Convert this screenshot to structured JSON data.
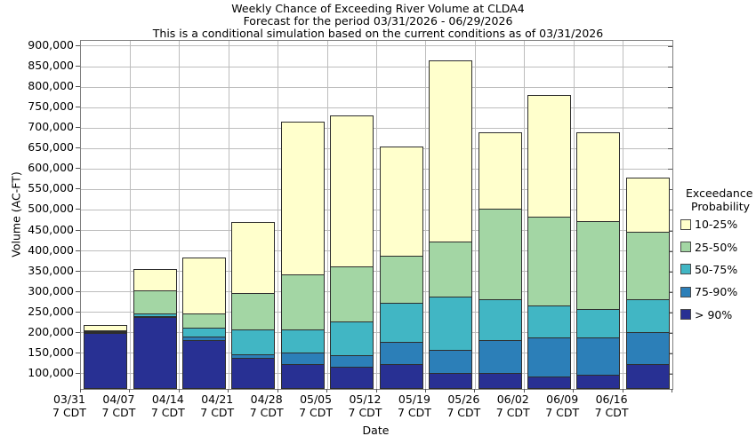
{
  "chart_data": {
    "type": "bar",
    "stacked": true,
    "title": "Weekly Chance of Exceeding River Volume at CLDA4",
    "subtitle": "Forecast for the period 03/31/2026 - 06/29/2026",
    "note": "This is a conditional simulation based on the current conditions as of 03/31/2026",
    "xlabel": "Date",
    "ylabel": "Volume (AC-FT)",
    "x_tick_sub": "7 CDT",
    "categories": [
      "03/31",
      "04/07",
      "04/14",
      "04/21",
      "04/28",
      "05/05",
      "05/12",
      "05/19",
      "05/26",
      "06/02",
      "06/09",
      "06/16"
    ],
    "series": [
      {
        "name": "10-25%",
        "color": "#FFFFCC",
        "cumulative": [
          220000,
          355000,
          385000,
          470000,
          715000,
          730000,
          655000,
          865000,
          690000,
          780000,
          690000,
          580000
        ]
      },
      {
        "name": "25-50%",
        "color": "#A3D6A4",
        "cumulative": [
          209000,
          305000,
          250000,
          300000,
          345000,
          365000,
          390000,
          425000,
          505000,
          485000,
          475000,
          450000
        ]
      },
      {
        "name": "50-75%",
        "color": "#41B6C4",
        "cumulative": [
          207000,
          250000,
          215000,
          210000,
          210000,
          230000,
          275000,
          290000,
          285000,
          270000,
          260000,
          285000
        ]
      },
      {
        "name": "75-90%",
        "color": "#2C7FB8",
        "cumulative": [
          206000,
          242000,
          193000,
          150000,
          155000,
          148000,
          180000,
          160000,
          185000,
          190000,
          190000,
          205000
        ]
      },
      {
        "name": "> 90%",
        "color": "#283093",
        "cumulative": [
          205000,
          240000,
          185000,
          140000,
          125000,
          120000,
          125000,
          105000,
          105000,
          95000,
          100000,
          125000
        ]
      }
    ],
    "y_axis": {
      "tick_min": 100000,
      "tick_max": 900000,
      "tick_step": 50000,
      "scale_min": 63000,
      "scale_max": 913000,
      "tick_format": "comma"
    },
    "legend": {
      "title_lines": [
        "Exceedance",
        "Probability"
      ],
      "position": "right"
    },
    "grid": true,
    "grid_color": "#bdbdbd",
    "frame_color": "#7f7f7f"
  }
}
